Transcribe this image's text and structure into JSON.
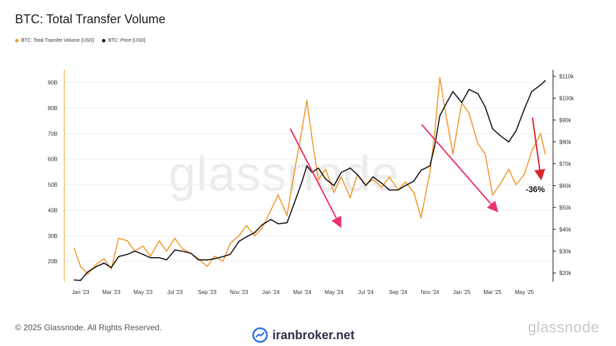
{
  "header": {
    "title": "BTC: Total Transfer Volume"
  },
  "legend": [
    {
      "label": "BTC: Total Transfer Volume [USD]",
      "color": "#f09a2e"
    },
    {
      "label": "BTC: Price [USD]",
      "color": "#111111"
    }
  ],
  "watermark": "glassnode",
  "footer": {
    "copyright": "© 2025 Glassnode. All Rights Reserved.",
    "logo_text": "glassnode",
    "brand_text": "iranbroker.net",
    "brand_icon": "trend-chart-icon"
  },
  "colors": {
    "volume": "#f09a2e",
    "price": "#111111",
    "arrow": "#e8336a",
    "arrow2": "#d9252b"
  },
  "chart_data": {
    "type": "line",
    "title": "BTC: Total Transfer Volume",
    "x_ticks": [
      "Jan '23",
      "Mar '23",
      "May '23",
      "Jul '23",
      "Sep '23",
      "Nov '23",
      "Jan '24",
      "Mar '24",
      "May '24",
      "Jul '24",
      "Sep '24",
      "Nov '24",
      "Jan '25",
      "Mar '25",
      "May '25"
    ],
    "x_range": [
      "2022-12",
      "2025-06"
    ],
    "left_axis": {
      "ticks": [
        "20B",
        "30B",
        "40B",
        "50B",
        "60B",
        "70B",
        "80B",
        "90B"
      ],
      "range": [
        12,
        95
      ]
    },
    "right_axis": {
      "ticks": [
        "$20k",
        "$30k",
        "$40k",
        "$50k",
        "$60k",
        "$70k",
        "$80k",
        "$90k",
        "$100k",
        "$110k"
      ],
      "range": [
        16,
        113
      ],
      "scale": "linear"
    },
    "grid": true,
    "annotations": [
      {
        "text": "-36%"
      }
    ],
    "series": [
      {
        "name": "BTC: Total Transfer Volume [USD]",
        "axis": "left",
        "x": [
          "2022-12-20",
          "2023-01-01",
          "2023-01-15",
          "2023-02-01",
          "2023-02-15",
          "2023-03-01",
          "2023-03-15",
          "2023-04-01",
          "2023-04-15",
          "2023-05-01",
          "2023-05-15",
          "2023-06-01",
          "2023-06-15",
          "2023-07-01",
          "2023-07-15",
          "2023-08-01",
          "2023-08-15",
          "2023-09-01",
          "2023-09-15",
          "2023-10-01",
          "2023-10-15",
          "2023-11-01",
          "2023-11-15",
          "2023-12-01",
          "2023-12-15",
          "2024-01-01",
          "2024-01-15",
          "2024-02-01",
          "2024-02-15",
          "2024-03-01",
          "2024-03-10",
          "2024-03-20",
          "2024-04-01",
          "2024-04-15",
          "2024-05-01",
          "2024-05-15",
          "2024-06-01",
          "2024-06-15",
          "2024-07-01",
          "2024-07-15",
          "2024-08-01",
          "2024-08-15",
          "2024-09-01",
          "2024-09-15",
          "2024-10-01",
          "2024-10-15",
          "2024-11-01",
          "2024-11-10",
          "2024-11-20",
          "2024-12-01",
          "2024-12-15",
          "2025-01-01",
          "2025-01-15",
          "2025-02-01",
          "2025-02-15",
          "2025-03-01",
          "2025-03-15",
          "2025-04-01",
          "2025-04-15",
          "2025-05-01",
          "2025-05-15",
          "2025-06-01",
          "2025-06-10"
        ],
        "values": [
          25,
          18,
          15,
          19,
          21,
          17,
          29,
          28,
          24,
          26,
          22,
          28,
          24,
          29,
          25,
          23,
          21,
          18,
          22,
          20,
          27,
          30,
          34,
          30,
          33,
          40,
          46,
          38,
          55,
          72,
          83,
          68,
          52,
          56,
          47,
          53,
          45,
          54,
          50,
          52,
          49,
          53,
          48,
          51,
          47,
          37,
          55,
          70,
          92,
          78,
          62,
          82,
          78,
          66,
          62,
          46,
          50,
          56,
          50,
          54,
          63,
          70,
          62
        ]
      },
      {
        "name": "BTC: Price [USD]",
        "axis": "right",
        "x": [
          "2022-12-20",
          "2023-01-01",
          "2023-01-15",
          "2023-02-01",
          "2023-02-15",
          "2023-03-01",
          "2023-03-15",
          "2023-04-01",
          "2023-04-15",
          "2023-05-01",
          "2023-05-15",
          "2023-06-01",
          "2023-06-15",
          "2023-07-01",
          "2023-07-15",
          "2023-08-01",
          "2023-08-15",
          "2023-09-01",
          "2023-09-15",
          "2023-10-01",
          "2023-10-15",
          "2023-11-01",
          "2023-11-15",
          "2023-12-01",
          "2023-12-15",
          "2024-01-01",
          "2024-01-15",
          "2024-02-01",
          "2024-02-15",
          "2024-03-01",
          "2024-03-10",
          "2024-03-20",
          "2024-04-01",
          "2024-04-15",
          "2024-05-01",
          "2024-05-15",
          "2024-06-01",
          "2024-06-15",
          "2024-07-01",
          "2024-07-15",
          "2024-08-01",
          "2024-08-15",
          "2024-09-01",
          "2024-09-15",
          "2024-10-01",
          "2024-10-15",
          "2024-11-01",
          "2024-11-10",
          "2024-11-20",
          "2024-12-01",
          "2024-12-15",
          "2025-01-01",
          "2025-01-15",
          "2025-02-01",
          "2025-02-15",
          "2025-03-01",
          "2025-03-15",
          "2025-04-01",
          "2025-04-15",
          "2025-05-01",
          "2025-05-15",
          "2025-06-01",
          "2025-06-10"
        ],
        "values": [
          16.8,
          16.6,
          20.5,
          23,
          24.5,
          22.5,
          27.5,
          28.5,
          30,
          28.5,
          27,
          27,
          26,
          30.5,
          30,
          29,
          26,
          26,
          26.5,
          27.5,
          28.5,
          34.5,
          36.5,
          38.5,
          42,
          44.5,
          42.5,
          43,
          52,
          62,
          69,
          66,
          68,
          63,
          60,
          66,
          68,
          65,
          60,
          64,
          61,
          58,
          58,
          60,
          62,
          67,
          69,
          78,
          92,
          97,
          103,
          98,
          104,
          102,
          96,
          86,
          83,
          80,
          85,
          95,
          103,
          106,
          108
        ]
      }
    ]
  }
}
